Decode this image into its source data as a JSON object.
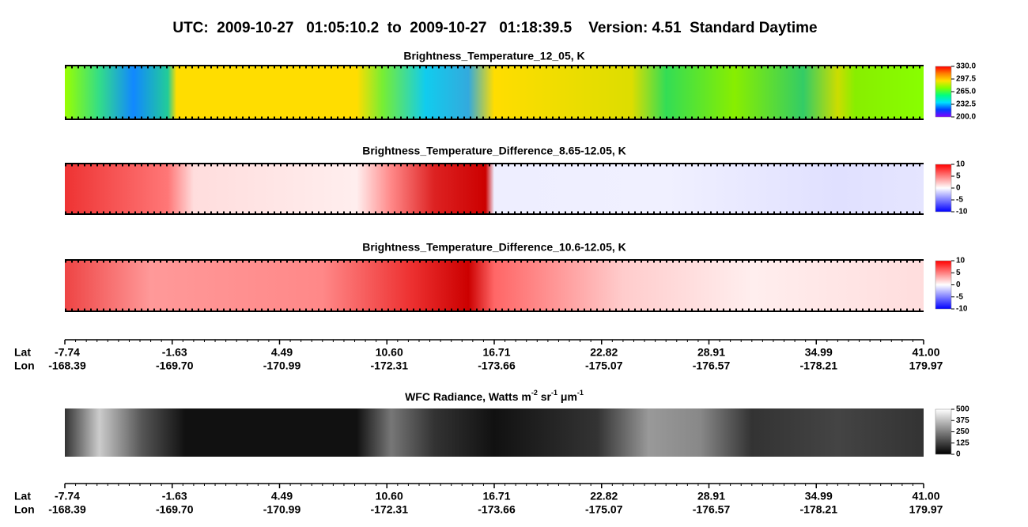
{
  "chart_data": [
    {
      "type": "image",
      "title": "Brightness_Temperature_12_05, K",
      "clim": [
        200,
        330
      ],
      "cticks": [
        {
          "value": 330,
          "label": "330.0"
        },
        {
          "value": 297.5,
          "label": "297.5"
        },
        {
          "value": 265,
          "label": "265.0"
        },
        {
          "value": 232.5,
          "label": "232.5"
        },
        {
          "value": 200,
          "label": "200.0"
        }
      ],
      "colormap": [
        "#8000ff",
        "#0040ff",
        "#00e0ff",
        "#00ff80",
        "#80ff00",
        "#ffe000",
        "#ff8000",
        "#ff0000"
      ]
    },
    {
      "type": "image",
      "title": "Brightness_Temperature_Difference_8.65-12.05, K",
      "clim": [
        -10,
        10
      ],
      "cticks": [
        10,
        5,
        0,
        -5,
        -10
      ],
      "colormap": [
        "#0000ff",
        "#ffffff",
        "#ff0000"
      ]
    },
    {
      "type": "image",
      "title": "Brightness_Temperature_Difference_10.6-12.05, K",
      "clim": [
        -10,
        10
      ],
      "cticks": [
        10,
        5,
        0,
        -5,
        -10
      ],
      "colormap": [
        "#0000ff",
        "#ffffff",
        "#ff0000"
      ]
    },
    {
      "type": "image",
      "title_parts": [
        "WFC Radiance, Watts m",
        "-2",
        " sr",
        "-1",
        " μm",
        "-1"
      ],
      "clim": [
        0,
        500
      ],
      "cticks": [
        500,
        375,
        250,
        125,
        0
      ],
      "colormap": [
        "#000000",
        "#ffffff"
      ]
    }
  ],
  "header": {
    "title": "UTC:  2009-10-27   01:05:10.2  to  2009-10-27   01:18:39.5    Version: 4.51  Standard Daytime"
  },
  "axis": {
    "lat_label": "Lat",
    "lon_label": "Lon",
    "lat": [
      "-7.74",
      "-1.63",
      "4.49",
      "10.60",
      "16.71",
      "22.82",
      "28.91",
      "34.99",
      "41.00"
    ],
    "lon": [
      "-168.39",
      "-169.70",
      "-170.99",
      "-172.31",
      "-173.66",
      "-175.07",
      "-176.57",
      "-178.21",
      "179.97"
    ]
  }
}
